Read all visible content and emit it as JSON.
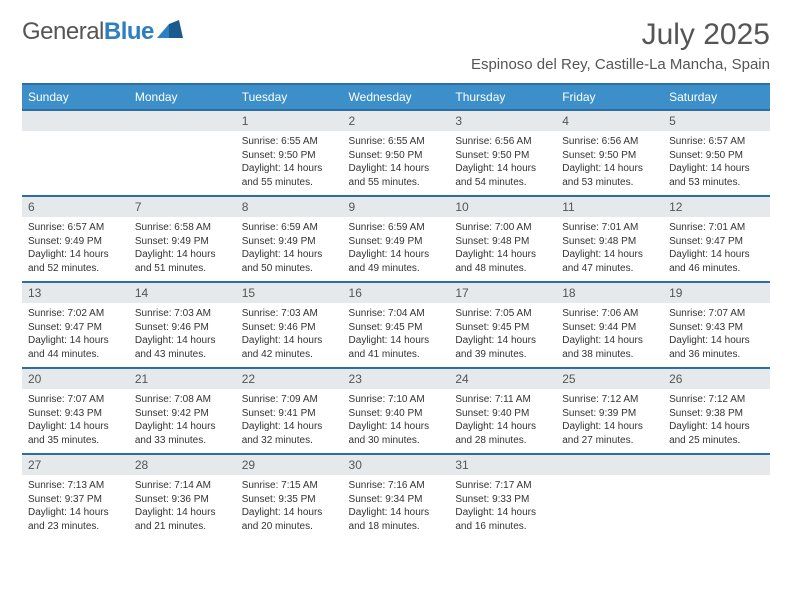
{
  "brand": {
    "part1": "General",
    "part2": "Blue"
  },
  "title": "July 2025",
  "location": "Espinoso del Rey, Castille-La Mancha, Spain",
  "colors": {
    "header_bg": "#3d8fc9",
    "header_border": "#2d6fa5",
    "daynum_bg": "#e6e9ec",
    "text": "#333333",
    "muted": "#555555"
  },
  "weekdays": [
    "Sunday",
    "Monday",
    "Tuesday",
    "Wednesday",
    "Thursday",
    "Friday",
    "Saturday"
  ],
  "layout": {
    "first_weekday_index": 2,
    "days_in_month": 31
  },
  "days": [
    {
      "n": 1,
      "sunrise": "6:55 AM",
      "sunset": "9:50 PM",
      "daylight": "14 hours and 55 minutes."
    },
    {
      "n": 2,
      "sunrise": "6:55 AM",
      "sunset": "9:50 PM",
      "daylight": "14 hours and 55 minutes."
    },
    {
      "n": 3,
      "sunrise": "6:56 AM",
      "sunset": "9:50 PM",
      "daylight": "14 hours and 54 minutes."
    },
    {
      "n": 4,
      "sunrise": "6:56 AM",
      "sunset": "9:50 PM",
      "daylight": "14 hours and 53 minutes."
    },
    {
      "n": 5,
      "sunrise": "6:57 AM",
      "sunset": "9:50 PM",
      "daylight": "14 hours and 53 minutes."
    },
    {
      "n": 6,
      "sunrise": "6:57 AM",
      "sunset": "9:49 PM",
      "daylight": "14 hours and 52 minutes."
    },
    {
      "n": 7,
      "sunrise": "6:58 AM",
      "sunset": "9:49 PM",
      "daylight": "14 hours and 51 minutes."
    },
    {
      "n": 8,
      "sunrise": "6:59 AM",
      "sunset": "9:49 PM",
      "daylight": "14 hours and 50 minutes."
    },
    {
      "n": 9,
      "sunrise": "6:59 AM",
      "sunset": "9:49 PM",
      "daylight": "14 hours and 49 minutes."
    },
    {
      "n": 10,
      "sunrise": "7:00 AM",
      "sunset": "9:48 PM",
      "daylight": "14 hours and 48 minutes."
    },
    {
      "n": 11,
      "sunrise": "7:01 AM",
      "sunset": "9:48 PM",
      "daylight": "14 hours and 47 minutes."
    },
    {
      "n": 12,
      "sunrise": "7:01 AM",
      "sunset": "9:47 PM",
      "daylight": "14 hours and 46 minutes."
    },
    {
      "n": 13,
      "sunrise": "7:02 AM",
      "sunset": "9:47 PM",
      "daylight": "14 hours and 44 minutes."
    },
    {
      "n": 14,
      "sunrise": "7:03 AM",
      "sunset": "9:46 PM",
      "daylight": "14 hours and 43 minutes."
    },
    {
      "n": 15,
      "sunrise": "7:03 AM",
      "sunset": "9:46 PM",
      "daylight": "14 hours and 42 minutes."
    },
    {
      "n": 16,
      "sunrise": "7:04 AM",
      "sunset": "9:45 PM",
      "daylight": "14 hours and 41 minutes."
    },
    {
      "n": 17,
      "sunrise": "7:05 AM",
      "sunset": "9:45 PM",
      "daylight": "14 hours and 39 minutes."
    },
    {
      "n": 18,
      "sunrise": "7:06 AM",
      "sunset": "9:44 PM",
      "daylight": "14 hours and 38 minutes."
    },
    {
      "n": 19,
      "sunrise": "7:07 AM",
      "sunset": "9:43 PM",
      "daylight": "14 hours and 36 minutes."
    },
    {
      "n": 20,
      "sunrise": "7:07 AM",
      "sunset": "9:43 PM",
      "daylight": "14 hours and 35 minutes."
    },
    {
      "n": 21,
      "sunrise": "7:08 AM",
      "sunset": "9:42 PM",
      "daylight": "14 hours and 33 minutes."
    },
    {
      "n": 22,
      "sunrise": "7:09 AM",
      "sunset": "9:41 PM",
      "daylight": "14 hours and 32 minutes."
    },
    {
      "n": 23,
      "sunrise": "7:10 AM",
      "sunset": "9:40 PM",
      "daylight": "14 hours and 30 minutes."
    },
    {
      "n": 24,
      "sunrise": "7:11 AM",
      "sunset": "9:40 PM",
      "daylight": "14 hours and 28 minutes."
    },
    {
      "n": 25,
      "sunrise": "7:12 AM",
      "sunset": "9:39 PM",
      "daylight": "14 hours and 27 minutes."
    },
    {
      "n": 26,
      "sunrise": "7:12 AM",
      "sunset": "9:38 PM",
      "daylight": "14 hours and 25 minutes."
    },
    {
      "n": 27,
      "sunrise": "7:13 AM",
      "sunset": "9:37 PM",
      "daylight": "14 hours and 23 minutes."
    },
    {
      "n": 28,
      "sunrise": "7:14 AM",
      "sunset": "9:36 PM",
      "daylight": "14 hours and 21 minutes."
    },
    {
      "n": 29,
      "sunrise": "7:15 AM",
      "sunset": "9:35 PM",
      "daylight": "14 hours and 20 minutes."
    },
    {
      "n": 30,
      "sunrise": "7:16 AM",
      "sunset": "9:34 PM",
      "daylight": "14 hours and 18 minutes."
    },
    {
      "n": 31,
      "sunrise": "7:17 AM",
      "sunset": "9:33 PM",
      "daylight": "14 hours and 16 minutes."
    }
  ],
  "labels": {
    "sunrise": "Sunrise:",
    "sunset": "Sunset:",
    "daylight": "Daylight:"
  }
}
